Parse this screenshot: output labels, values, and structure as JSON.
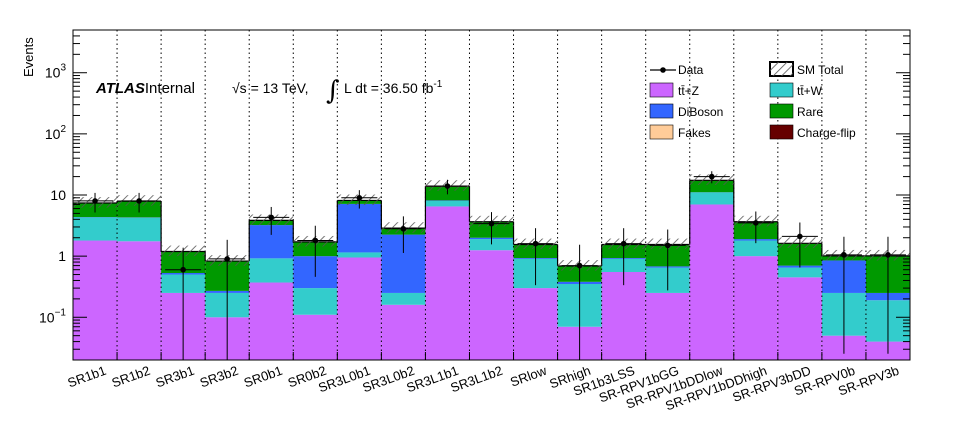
{
  "chart_data": {
    "type": "bar",
    "stacked": true,
    "log_scale_y": true,
    "ylim": [
      0.02,
      5000
    ],
    "ylabel": "Events",
    "xlabel": "",
    "grid": "vertical dotted lines between regions",
    "legend_placement": "top-right",
    "categories": [
      "SR1b1",
      "SR1b2",
      "SR3b1",
      "SR3b2",
      "SR0b1",
      "SR0b2",
      "SR3L0b1",
      "SR3L0b2",
      "SR3L1b1",
      "SR3L1b2",
      "SRlow",
      "SRhigh",
      "SR1b3LSS",
      "SR-RPV1bGG",
      "SR-RPV1bDDlow",
      "SR-RPV1bDDhigh",
      "SR-RPV3bDD",
      "SR-RPV0b",
      "SR-RPV3b"
    ],
    "series": [
      {
        "name": "tt̄+Z",
        "color": "#cc66ff",
        "values": [
          1.8,
          1.75,
          0.25,
          0.1,
          0.37,
          0.11,
          0.95,
          0.16,
          6.5,
          1.25,
          0.3,
          0.07,
          0.55,
          0.25,
          7.0,
          1.0,
          0.45,
          0.05,
          0.04
        ]
      },
      {
        "name": "tt̄+W",
        "color": "#33cccc",
        "values": [
          2.5,
          2.5,
          0.25,
          0.15,
          0.55,
          0.19,
          0.2,
          0.09,
          1.5,
          0.65,
          0.6,
          0.28,
          0.35,
          0.4,
          4.0,
          0.8,
          0.2,
          0.2,
          0.15
        ]
      },
      {
        "name": "DiBoson",
        "color": "#3366ff",
        "values": [
          0.05,
          0.05,
          0.03,
          0.02,
          2.3,
          0.7,
          6.0,
          2.0,
          0.15,
          0.1,
          0.03,
          0.03,
          0.03,
          0.03,
          0.1,
          0.1,
          0.05,
          0.6,
          0.06
        ]
      },
      {
        "name": "Fakes",
        "color": "#ffcc99",
        "values": [
          0,
          0,
          0,
          0,
          0,
          0,
          0,
          0,
          0,
          0,
          0,
          0,
          0,
          0,
          0,
          0,
          0,
          0,
          0
        ]
      },
      {
        "name": "Rare",
        "color": "#009900",
        "values": [
          3.0,
          3.6,
          0.65,
          0.55,
          0.6,
          0.7,
          0.95,
          0.6,
          5.5,
          1.6,
          0.6,
          0.3,
          0.6,
          0.85,
          6.0,
          1.7,
          0.9,
          0.15,
          0.75
        ]
      },
      {
        "name": "Charge-flip",
        "color": "#660000",
        "values": [
          0.05,
          0.05,
          0.01,
          0.01,
          0.02,
          0.01,
          0.05,
          0.02,
          0.3,
          0.05,
          0.02,
          0.01,
          0.02,
          0.02,
          0.3,
          0.05,
          0.02,
          0.01,
          0.01
        ]
      }
    ],
    "sm_total": {
      "name": "SM Total",
      "values": [
        7.4,
        7.95,
        1.19,
        0.83,
        3.84,
        1.71,
        8.15,
        2.87,
        13.95,
        3.65,
        1.55,
        0.69,
        1.55,
        1.55,
        17.4,
        3.65,
        1.62,
        1.01,
        1.01
      ]
    },
    "data": {
      "name": "Data",
      "values": [
        8,
        8,
        0.6,
        0.9,
        4.3,
        1.8,
        9,
        2.8,
        14,
        3.4,
        1.6,
        0.7,
        1.6,
        1.5,
        20,
        3.5,
        2.1,
        1.05,
        1.05
      ]
    },
    "yticks": [
      {
        "base": "10",
        "exp": "3"
      },
      {
        "base": "10",
        "exp": "2"
      },
      {
        "base": "10",
        "exp": ""
      },
      {
        "base": "1",
        "exp": ""
      },
      {
        "base": "10",
        "exp": "−1"
      }
    ]
  },
  "annotations": {
    "atlas": "ATLAS",
    "internal": "Internal",
    "sqrt_s": "√s = 13 TeV,",
    "integral": "∫",
    "lumi_text": "L dt = 36.50 fb",
    "lumi_exp": "-1"
  },
  "legend": [
    {
      "label": "Data",
      "key": "data"
    },
    {
      "label": "SM Total",
      "key": "smtotal"
    },
    {
      "label": "tt̄+Z",
      "key": "ttZ",
      "color": "#cc66ff"
    },
    {
      "label": "tt̄+W",
      "key": "ttW",
      "color": "#33cccc"
    },
    {
      "label": "DiBoson",
      "key": "diboson",
      "color": "#3366ff"
    },
    {
      "label": "Rare",
      "key": "rare",
      "color": "#009900"
    },
    {
      "label": "Fakes",
      "key": "fakes",
      "color": "#ffcc99"
    },
    {
      "label": "Charge-flip",
      "key": "chargeflip",
      "color": "#660000"
    }
  ]
}
